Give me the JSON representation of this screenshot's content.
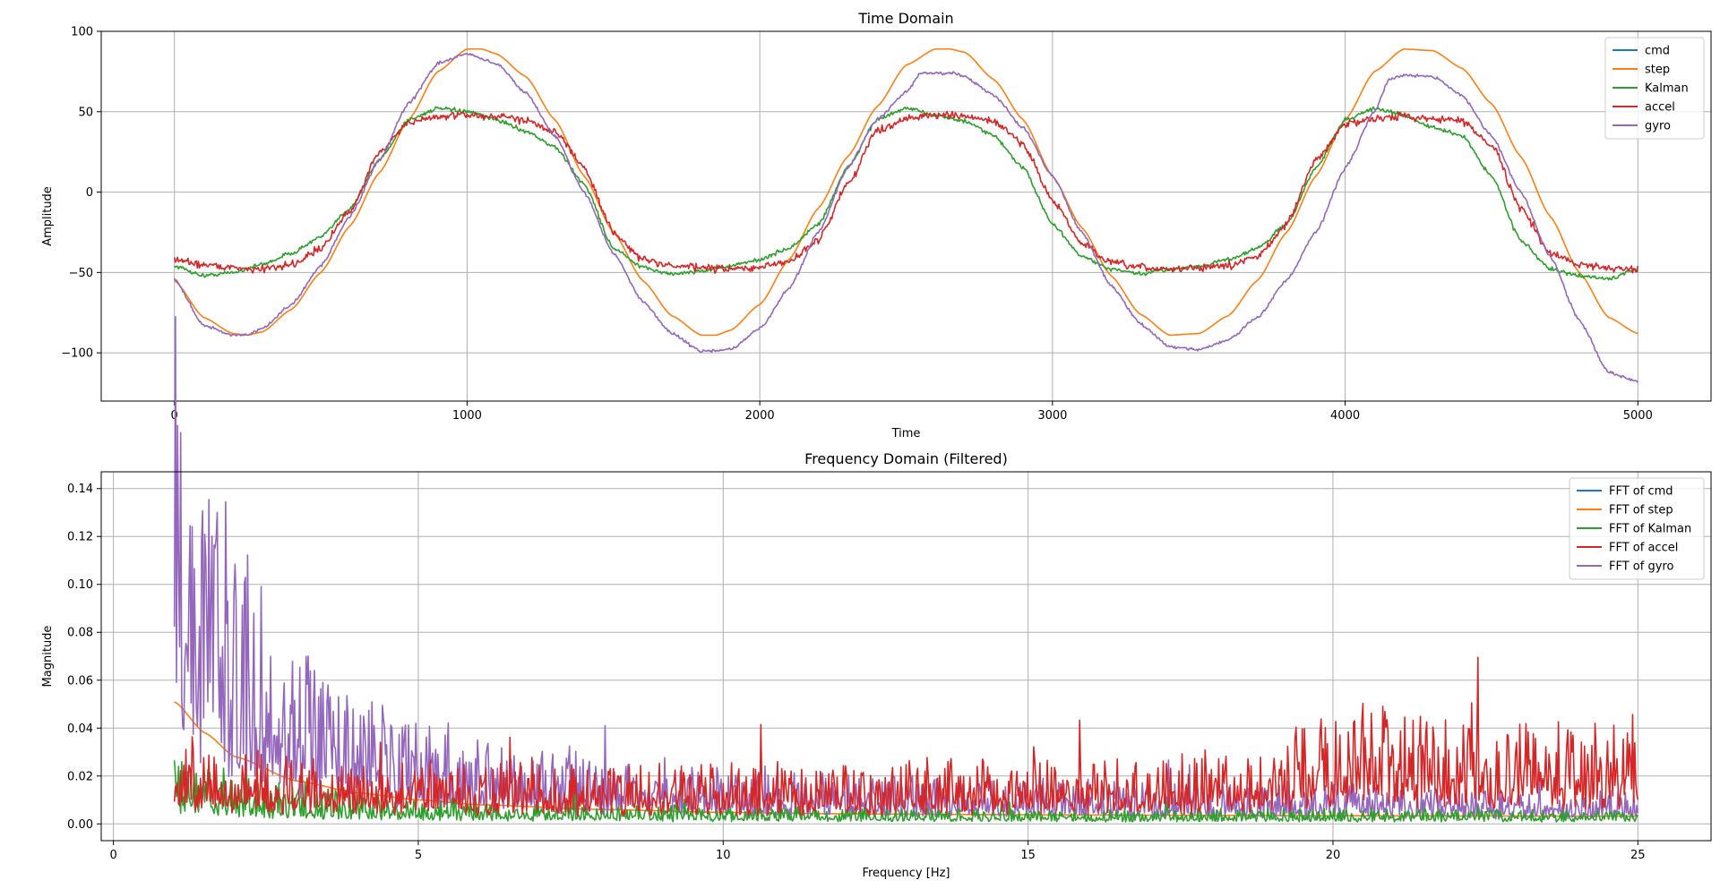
{
  "colors": {
    "cmd": "#1f77b4",
    "step": "#ff7f0e",
    "kalman": "#2ca02c",
    "accel": "#d62728",
    "gyro": "#9467bd",
    "grid": "#b0b0b0"
  },
  "chart_data": [
    {
      "type": "line",
      "title": "Time Domain",
      "xlabel": "Time",
      "ylabel": "Amplitude",
      "xlim": [
        -250,
        5250
      ],
      "ylim": [
        -130,
        100
      ],
      "xticks": [
        0,
        1000,
        2000,
        3000,
        4000,
        5000
      ],
      "yticks": [
        -100,
        -50,
        0,
        50,
        100
      ],
      "xtick_labels": [
        "0",
        "1000",
        "2000",
        "3000",
        "4000",
        "5000"
      ],
      "ytick_labels": [
        "−100",
        "−50",
        "0",
        "50",
        "100"
      ],
      "grid": true,
      "legend_position": "upper right",
      "legend": [
        "cmd",
        "step",
        "Kalman",
        "accel",
        "gyro"
      ],
      "series": [
        {
          "name": "step",
          "color_key": "step",
          "noise": 0,
          "x": [
            0,
            100,
            200,
            250,
            300,
            400,
            500,
            600,
            700,
            800,
            900,
            1000,
            1050,
            1100,
            1200,
            1300,
            1400,
            1500,
            1600,
            1700,
            1800,
            1850,
            1900,
            2000,
            2100,
            2200,
            2300,
            2400,
            2500,
            2600,
            2650,
            2700,
            2800,
            2900,
            3000,
            3100,
            3200,
            3300,
            3400,
            3500,
            3600,
            3700,
            3800,
            3900,
            4000,
            4100,
            4200,
            4300,
            4400,
            4500,
            4600,
            4700,
            4800,
            4900,
            5000
          ],
          "y": [
            -55,
            -78,
            -88,
            -89,
            -87,
            -73,
            -50,
            -21,
            12,
            45,
            75,
            89,
            89,
            86,
            72,
            45,
            10,
            -25,
            -55,
            -77,
            -89,
            -89,
            -86,
            -70,
            -42,
            -10,
            22,
            53,
            79,
            89,
            89,
            87,
            70,
            45,
            10,
            -22,
            -52,
            -76,
            -89,
            -88,
            -77,
            -55,
            -25,
            10,
            45,
            75,
            89,
            88,
            77,
            55,
            22,
            -15,
            -50,
            -78,
            -88
          ]
        },
        {
          "name": "Kalman",
          "color_key": "kalman",
          "noise": 1.2,
          "x": [
            0,
            100,
            200,
            300,
            400,
            500,
            600,
            700,
            800,
            900,
            1000,
            1100,
            1200,
            1300,
            1400,
            1500,
            1600,
            1700,
            1800,
            1900,
            2000,
            2100,
            2200,
            2300,
            2400,
            2500,
            2600,
            2700,
            2800,
            2900,
            3000,
            3100,
            3200,
            3300,
            3400,
            3500,
            3600,
            3700,
            3800,
            3900,
            4000,
            4100,
            4200,
            4300,
            4400,
            4500,
            4600,
            4700,
            4800,
            4900,
            5000
          ],
          "y": [
            -46,
            -52,
            -50,
            -45,
            -38,
            -28,
            -10,
            20,
            45,
            52,
            50,
            45,
            38,
            28,
            5,
            -35,
            -47,
            -51,
            -49,
            -46,
            -42,
            -35,
            -20,
            15,
            45,
            52,
            48,
            44,
            35,
            15,
            -20,
            -40,
            -48,
            -51,
            -48,
            -46,
            -42,
            -35,
            -20,
            15,
            45,
            52,
            48,
            40,
            35,
            10,
            -30,
            -48,
            -52,
            -54,
            -48
          ]
        },
        {
          "name": "accel",
          "color_key": "accel",
          "noise": 2.2,
          "x": [
            0,
            100,
            200,
            300,
            400,
            500,
            600,
            700,
            800,
            900,
            1000,
            1100,
            1200,
            1300,
            1400,
            1500,
            1600,
            1700,
            1800,
            1900,
            2000,
            2100,
            2200,
            2300,
            2400,
            2500,
            2600,
            2700,
            2800,
            2900,
            3000,
            3100,
            3200,
            3300,
            3400,
            3500,
            3600,
            3700,
            3800,
            3900,
            4000,
            4100,
            4200,
            4300,
            4400,
            4500,
            4600,
            4700,
            4800,
            4900,
            5000
          ],
          "y": [
            -42,
            -45,
            -47,
            -48,
            -45,
            -35,
            -12,
            25,
            43,
            47,
            48,
            47,
            45,
            38,
            15,
            -25,
            -42,
            -46,
            -47,
            -48,
            -47,
            -43,
            -30,
            5,
            38,
            46,
            48,
            47,
            44,
            30,
            -5,
            -32,
            -44,
            -47,
            -48,
            -47,
            -46,
            -40,
            -20,
            20,
            42,
            46,
            47,
            46,
            44,
            30,
            -10,
            -38,
            -45,
            -47,
            -48
          ]
        },
        {
          "name": "gyro",
          "color_key": "gyro",
          "noise": 0.9,
          "x": [
            0,
            100,
            200,
            250,
            300,
            400,
            500,
            600,
            700,
            800,
            900,
            1000,
            1100,
            1200,
            1300,
            1400,
            1500,
            1600,
            1700,
            1800,
            1900,
            2000,
            2100,
            2200,
            2300,
            2400,
            2500,
            2550,
            2650,
            2700,
            2800,
            2900,
            3000,
            3100,
            3200,
            3300,
            3400,
            3500,
            3600,
            3700,
            3800,
            3900,
            4000,
            4100,
            4150,
            4200,
            4300,
            4400,
            4500,
            4600,
            4700,
            4800,
            4900,
            5000
          ],
          "y": [
            -54,
            -83,
            -89,
            -89,
            -85,
            -70,
            -46,
            -15,
            20,
            55,
            80,
            86,
            80,
            62,
            35,
            0,
            -38,
            -68,
            -88,
            -99,
            -98,
            -85,
            -60,
            -25,
            15,
            45,
            62,
            74,
            74,
            72,
            60,
            40,
            10,
            -25,
            -58,
            -82,
            -96,
            -98,
            -92,
            -78,
            -55,
            -25,
            15,
            50,
            70,
            73,
            72,
            60,
            35,
            0,
            -40,
            -80,
            -112,
            -118
          ]
        }
      ]
    },
    {
      "type": "line",
      "title": "Frequency Domain (Filtered)",
      "xlabel": "Frequency [Hz]",
      "ylabel": "Magnitude",
      "xlim": [
        -0.2,
        26.2
      ],
      "ylim": [
        -0.007,
        0.147
      ],
      "xticks": [
        0,
        5,
        10,
        15,
        20,
        25
      ],
      "yticks": [
        0.0,
        0.02,
        0.04,
        0.06,
        0.08,
        0.1,
        0.12,
        0.14
      ],
      "xtick_labels": [
        "0",
        "5",
        "10",
        "15",
        "20",
        "25"
      ],
      "ytick_labels": [
        "0.00",
        "0.02",
        "0.04",
        "0.06",
        "0.08",
        "0.10",
        "0.12",
        "0.14"
      ],
      "grid": true,
      "legend_position": "upper right",
      "legend": [
        "FFT of cmd",
        "FFT of step",
        "FFT of Kalman",
        "FFT of accel",
        "FFT of gyro"
      ],
      "series": [
        {
          "name": "FFT of step",
          "color_key": "step",
          "noise": 0,
          "x": [
            1,
            1.5,
            2,
            3,
            4,
            5,
            6,
            8,
            10,
            12,
            15,
            20,
            25
          ],
          "y": [
            0.051,
            0.038,
            0.028,
            0.018,
            0.013,
            0.01,
            0.008,
            0.006,
            0.0048,
            0.0042,
            0.0038,
            0.0034,
            0.0032
          ]
        },
        {
          "name": "FFT of gyro",
          "color_key": "gyro",
          "noise": 0.35,
          "x": [
            1,
            1.05,
            1.2,
            1.5,
            2,
            2.5,
            3,
            4,
            5,
            6,
            8,
            10,
            12,
            15,
            20,
            25
          ],
          "y": [
            0.137,
            0.1,
            0.088,
            0.075,
            0.058,
            0.045,
            0.037,
            0.027,
            0.021,
            0.018,
            0.014,
            0.012,
            0.01,
            0.009,
            0.008,
            0.007
          ]
        },
        {
          "name": "FFT of Kalman",
          "color_key": "kalman",
          "noise": 0.7,
          "x": [
            1,
            1.5,
            2,
            3,
            4,
            5,
            7,
            10,
            15,
            20,
            25
          ],
          "y": [
            0.018,
            0.013,
            0.01,
            0.008,
            0.006,
            0.005,
            0.004,
            0.0035,
            0.0032,
            0.003,
            0.003
          ]
        },
        {
          "name": "FFT of accel",
          "color_key": "accel",
          "noise": 0.9,
          "x": [
            1,
            2,
            3,
            4,
            5,
            8,
            10,
            12,
            15,
            19,
            19.5,
            20,
            21,
            23,
            25
          ],
          "y": [
            0.016,
            0.015,
            0.014,
            0.013,
            0.012,
            0.012,
            0.013,
            0.013,
            0.014,
            0.015,
            0.022,
            0.025,
            0.024,
            0.023,
            0.022
          ]
        }
      ]
    }
  ]
}
